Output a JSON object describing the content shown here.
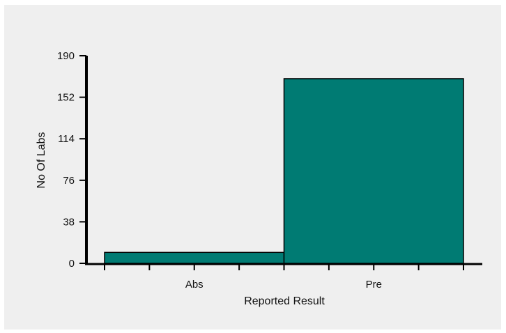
{
  "chart_data": {
    "type": "bar",
    "categories": [
      "Abs",
      "Pre"
    ],
    "values": [
      10,
      169
    ],
    "title": "",
    "xlabel": "Reported Result",
    "ylabel": "No Of Labs",
    "ylim": [
      0,
      190
    ],
    "yticks": [
      "0",
      "38",
      "76",
      "114",
      "152",
      "190"
    ],
    "grid": false,
    "legend": "none",
    "bar_color": "#007b73",
    "bar_edge_color": "#000000",
    "background_color": "#efefef"
  }
}
